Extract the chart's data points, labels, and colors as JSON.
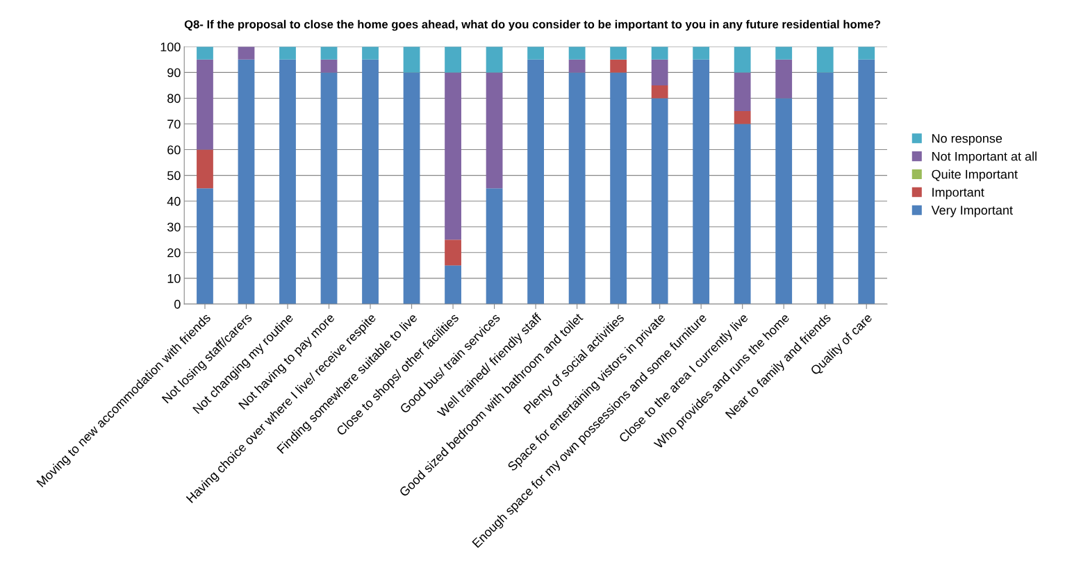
{
  "chart_data": {
    "type": "bar",
    "stacked": true,
    "title": "Q8- If the proposal to close the home goes ahead, what do you consider to be important to you in any future residential home?",
    "categories": [
      "Moving to new accommodation with friends",
      "Not losing staff/carers",
      "Not changing my routine",
      "Not having to pay more",
      "Having choice over where I live/ receive respite",
      "Finding somewhere suitable to live",
      "Close to shops/ other facilities",
      "Good bus/ train services",
      "Well trained/ friendly staff",
      "Good sized bedroom with bathroom and toilet",
      "Plenty of social activities",
      "Space for entertaining vistors in private",
      "Enough space for my own possessions and some furniture",
      "Close to the area I currently live",
      "Who provides and runs the home",
      "Near to family and friends",
      "Quality of care"
    ],
    "series": [
      {
        "name": "Very Important",
        "color": "#4f81bd",
        "values": [
          45,
          95,
          95,
          90,
          95,
          90,
          15,
          45,
          95,
          90,
          90,
          80,
          95,
          70,
          80,
          90,
          95
        ]
      },
      {
        "name": "Important",
        "color": "#c0504d",
        "values": [
          15,
          0,
          0,
          0,
          0,
          0,
          10,
          0,
          0,
          0,
          5,
          5,
          0,
          5,
          0,
          0,
          0
        ]
      },
      {
        "name": "Quite Important",
        "color": "#9bbb59",
        "values": [
          0,
          0,
          0,
          0,
          0,
          0,
          0,
          0,
          0,
          0,
          0,
          0,
          0,
          0,
          0,
          0,
          0
        ]
      },
      {
        "name": "Not Important at all",
        "color": "#8064a2",
        "values": [
          35,
          5,
          0,
          5,
          0,
          0,
          65,
          45,
          0,
          5,
          0,
          10,
          0,
          15,
          15,
          0,
          0
        ]
      },
      {
        "name": "No response",
        "color": "#4bacc6",
        "values": [
          5,
          0,
          5,
          5,
          5,
          10,
          10,
          10,
          5,
          5,
          5,
          5,
          5,
          10,
          5,
          10,
          5
        ]
      }
    ],
    "ylim": [
      0,
      100
    ],
    "yticks": [
      0,
      10,
      20,
      30,
      40,
      50,
      60,
      70,
      80,
      90,
      100
    ],
    "grid": "y",
    "legend": "right"
  }
}
